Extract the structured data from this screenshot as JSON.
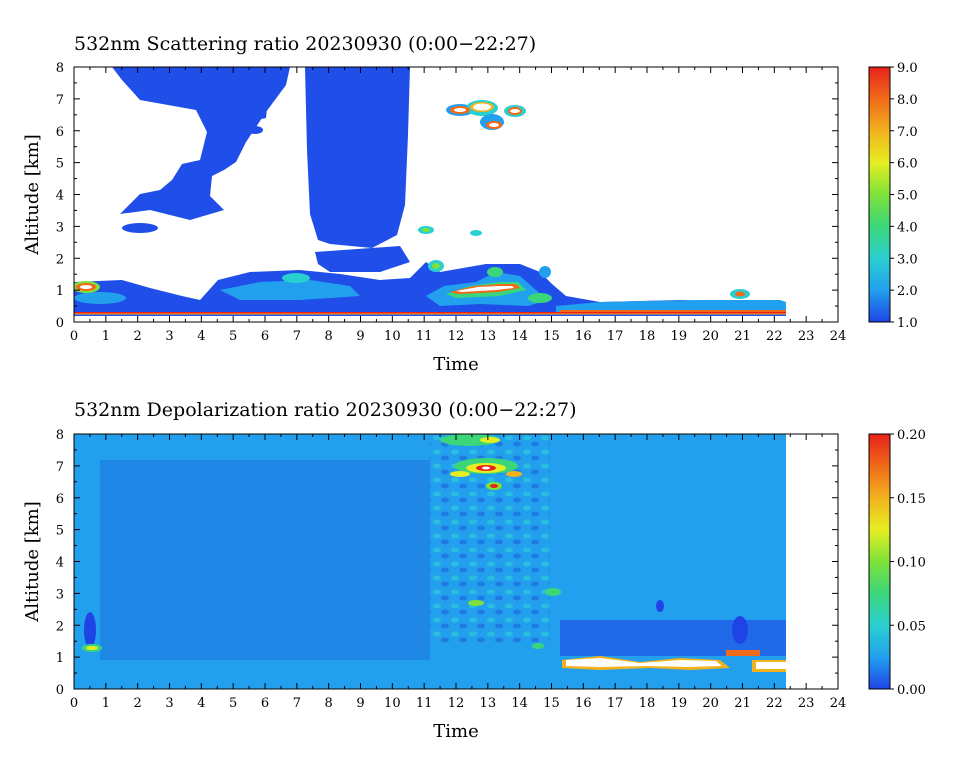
{
  "chart_data": [
    {
      "type": "heatmap",
      "title": "532nm Scattering ratio  20230930 (0:00−22:27)",
      "xlabel": "Time",
      "ylabel": "Altitude [km]",
      "xlim": [
        0,
        24
      ],
      "ylim": [
        0,
        8
      ],
      "x_ticks": [
        "0",
        "1",
        "2",
        "3",
        "4",
        "5",
        "6",
        "7",
        "8",
        "9",
        "10",
        "11",
        "12",
        "13",
        "14",
        "15",
        "16",
        "17",
        "18",
        "19",
        "20",
        "21",
        "22",
        "23",
        "24"
      ],
      "y_ticks": [
        "0",
        "1",
        "2",
        "3",
        "4",
        "5",
        "6",
        "7",
        "8"
      ],
      "data_time_range": [
        0,
        22.45
      ],
      "colorbar": {
        "range": [
          1.0,
          9.0
        ],
        "labels": [
          "1.0",
          "2.0",
          "3.0",
          "4.0",
          "5.0",
          "6.0",
          "7.0",
          "8.0",
          "9.0"
        ],
        "colors": [
          "#1f44e6",
          "#22a0ee",
          "#2ad0d0",
          "#3cd67a",
          "#7ee23a",
          "#e6ee22",
          "#f2b21e",
          "#f06a1a",
          "#e8221a"
        ]
      },
      "features": [
        {
          "desc": "broad low-value cloud (ratio ~1-2)",
          "time": [
            3.5,
            10.6
          ],
          "altitude": [
            2.5,
            8.0
          ],
          "value": 1.5
        },
        {
          "desc": "boundary layer",
          "time": [
            0,
            11
          ],
          "altitude": [
            0.3,
            1.4
          ],
          "value": 1.8
        },
        {
          "desc": "strong cloud near 1 km",
          "time": [
            11.5,
            14.5
          ],
          "altitude": [
            0.8,
            1.4
          ],
          "value": 8.5
        },
        {
          "desc": "mid-level cloud",
          "time": [
            11.8,
            13.8
          ],
          "altitude": [
            6.0,
            6.9
          ],
          "value": 8.0
        },
        {
          "desc": "near-surface layer",
          "time": [
            15,
            22.4
          ],
          "altitude": [
            0.3,
            0.6
          ],
          "value": 2.0
        }
      ]
    },
    {
      "type": "heatmap",
      "title": "532nm Depolarization ratio  20230930 (0:00−22:27)",
      "xlabel": "Time",
      "ylabel": "Altitude [km]",
      "xlim": [
        0,
        24
      ],
      "ylim": [
        0,
        8
      ],
      "x_ticks": [
        "0",
        "1",
        "2",
        "3",
        "4",
        "5",
        "6",
        "7",
        "8",
        "9",
        "10",
        "11",
        "12",
        "13",
        "14",
        "15",
        "16",
        "17",
        "18",
        "19",
        "20",
        "21",
        "22",
        "23",
        "24"
      ],
      "y_ticks": [
        "0",
        "1",
        "2",
        "3",
        "4",
        "5",
        "6",
        "7",
        "8"
      ],
      "data_time_range": [
        0,
        22.45
      ],
      "colorbar": {
        "range": [
          0.0,
          0.2
        ],
        "labels": [
          "0.00",
          "0.05",
          "0.10",
          "0.15",
          "0.20"
        ],
        "colors": [
          "#1f44e6",
          "#22a0ee",
          "#2ad0d0",
          "#3cd67a",
          "#7ee23a",
          "#e6ee22",
          "#f2b21e",
          "#f06a1a",
          "#e8221a"
        ]
      },
      "features": [
        {
          "desc": "background",
          "time": [
            0,
            22.45
          ],
          "altitude": [
            0,
            8
          ],
          "value": 0.035
        },
        {
          "desc": "speckled cloud region",
          "time": [
            11,
            14.5
          ],
          "altitude": [
            1,
            8
          ],
          "value": 0.06
        },
        {
          "desc": "high depolarization near 7 km",
          "time": [
            11.8,
            13.8
          ],
          "altitude": [
            6.3,
            7.2
          ],
          "value": 0.16
        },
        {
          "desc": "high depolarization near-surface layer",
          "time": [
            15.3,
            22.4
          ],
          "altitude": [
            0.6,
            1.1
          ],
          "value": 0.2
        }
      ]
    }
  ]
}
